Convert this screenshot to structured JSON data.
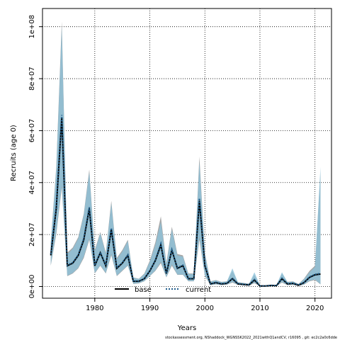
{
  "chart_data": {
    "type": "line",
    "xlabel": "Years",
    "ylabel": "Recruits (age 0)",
    "xlim": [
      1970.5,
      2023.0
    ],
    "ylim": [
      -4500000,
      107000000
    ],
    "x_ticks": [
      1980,
      1990,
      2000,
      2010,
      2020
    ],
    "x_tick_labels": [
      "1980",
      "1990",
      "2000",
      "2010",
      "2020"
    ],
    "y_ticks": [
      0,
      20000000,
      40000000,
      60000000,
      80000000,
      100000000
    ],
    "y_tick_labels": [
      "0e+00",
      "2e+07",
      "4e+07",
      "6e+07",
      "8e+07",
      "1e+08"
    ],
    "grid": true,
    "legend_position": "bottom-center",
    "footnote": "stockassessment.org, NShaddock_WGNSSK2022_2021withQ1andCV, r16095 , git: ec2c2a0c6dde",
    "colors": {
      "base_band": "#a6a6a6",
      "current_band": "#8fc3db",
      "base_line": "#000000",
      "current_line": "#1f5c8a"
    },
    "years": [
      1972,
      1973,
      1974,
      1975,
      1976,
      1977,
      1978,
      1979,
      1980,
      1981,
      1982,
      1983,
      1984,
      1985,
      1986,
      1987,
      1988,
      1989,
      1990,
      1991,
      1992,
      1993,
      1994,
      1995,
      1996,
      1997,
      1998,
      1999,
      2000,
      2001,
      2002,
      2003,
      2004,
      2005,
      2006,
      2007,
      2008,
      2009,
      2010,
      2011,
      2012,
      2013,
      2014,
      2015,
      2016,
      2017,
      2018,
      2019,
      2020,
      2021
    ],
    "series": [
      {
        "name": "base",
        "style": "solid",
        "values": [
          12000000,
          30000000,
          65000000,
          8000000,
          9000000,
          12000000,
          18000000,
          30000000,
          8000000,
          13000000,
          8000000,
          22000000,
          7000000,
          9000000,
          12000000,
          2000000,
          2000000,
          3000000,
          6000000,
          10000000,
          16000000,
          5000000,
          14000000,
          7000000,
          8000000,
          3000000,
          3000000,
          33000000,
          8000000,
          1000000,
          1500000,
          1000000,
          1200000,
          3000000,
          1000000,
          800000,
          600000,
          2500000,
          200000,
          200000,
          400000,
          300000,
          3000000,
          1000000,
          1200000,
          500000,
          1500000,
          3500000,
          4500000,
          4800000
        ],
        "lower": [
          8000000,
          20000000,
          38000000,
          4000000,
          5000000,
          7000000,
          11000000,
          18000000,
          5000000,
          8000000,
          5000000,
          12000000,
          4000000,
          6000000,
          8000000,
          1000000,
          1200000,
          2000000,
          4000000,
          6000000,
          9000000,
          3500000,
          8000000,
          4500000,
          4500000,
          2000000,
          2000000,
          18000000,
          4000000,
          500000,
          800000,
          500000,
          700000,
          1500000,
          600000,
          400000,
          300000,
          1300000,
          100000,
          100000,
          200000,
          150000,
          1500000,
          500000,
          600000,
          200000,
          700000,
          2000000,
          2500000,
          800000
        ],
        "upper": [
          17000000,
          46000000,
          102000000,
          13000000,
          15000000,
          19000000,
          28000000,
          45000000,
          14000000,
          21000000,
          13000000,
          33000000,
          11000000,
          14000000,
          18000000,
          3500000,
          3000000,
          5000000,
          10000000,
          17000000,
          27000000,
          9000000,
          23000000,
          12500000,
          12000000,
          5000000,
          5000000,
          50000000,
          13000000,
          2000000,
          2500000,
          1800000,
          2000000,
          6000000,
          1700000,
          1400000,
          1100000,
          4500000,
          500000,
          400000,
          700000,
          600000,
          5000000,
          1800000,
          2000000,
          1000000,
          3000000,
          6000000,
          8000000,
          44000000
        ]
      },
      {
        "name": "current",
        "style": "dotted",
        "values": [
          12500000,
          31000000,
          66000000,
          8200000,
          9200000,
          12200000,
          18500000,
          30500000,
          8200000,
          13200000,
          8200000,
          22500000,
          7200000,
          9200000,
          12200000,
          2100000,
          2100000,
          3100000,
          6100000,
          10200000,
          16500000,
          5100000,
          14200000,
          7200000,
          8200000,
          3100000,
          3100000,
          34000000,
          8200000,
          1100000,
          1600000,
          1100000,
          1300000,
          3200000,
          1100000,
          900000,
          700000,
          2700000,
          250000,
          250000,
          450000,
          350000,
          3200000,
          1100000,
          1300000,
          600000,
          1600000,
          3700000,
          4700000,
          5000000
        ],
        "lower": [
          8200000,
          21000000,
          39000000,
          4200000,
          5200000,
          7200000,
          11500000,
          18500000,
          5200000,
          8200000,
          5200000,
          12500000,
          4200000,
          6200000,
          8200000,
          1100000,
          1300000,
          2100000,
          4100000,
          6200000,
          9500000,
          3600000,
          8500000,
          4600000,
          4600000,
          2100000,
          2100000,
          19000000,
          4200000,
          600000,
          900000,
          600000,
          800000,
          1700000,
          700000,
          500000,
          400000,
          1500000,
          150000,
          150000,
          250000,
          200000,
          1700000,
          600000,
          700000,
          300000,
          800000,
          2200000,
          2700000,
          900000
        ],
        "upper": [
          16500000,
          45000000,
          100000000,
          12500000,
          14500000,
          18500000,
          27500000,
          44000000,
          13500000,
          20500000,
          12500000,
          32000000,
          10500000,
          13500000,
          17500000,
          3400000,
          2900000,
          4800000,
          9500000,
          16000000,
          25000000,
          8500000,
          22000000,
          12000000,
          11500000,
          4800000,
          4800000,
          48000000,
          12500000,
          1900000,
          2400000,
          1700000,
          1900000,
          7000000,
          1600000,
          1300000,
          1000000,
          5500000,
          450000,
          380000,
          650000,
          550000,
          5500000,
          1700000,
          1900000,
          900000,
          2800000,
          5500000,
          7500000,
          46000000
        ]
      }
    ]
  }
}
